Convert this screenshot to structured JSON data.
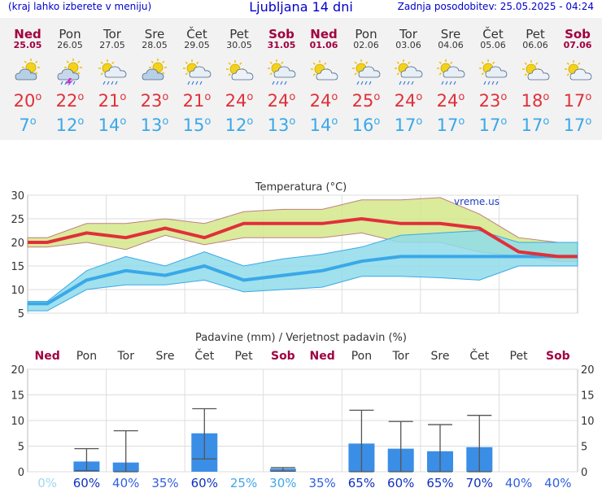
{
  "header": {
    "left_note": "(kraj lahko izberete v meniju)",
    "title": "Ljubljana 14 dni",
    "updated": "Zadnja posodobitev: 25.05.2025 - 04:24"
  },
  "days": [
    {
      "name": "Ned",
      "date": "25.05",
      "weekend": true,
      "icon": "partly-cloudy-icon",
      "max": "20",
      "min": "7"
    },
    {
      "name": "Pon",
      "date": "26.05",
      "weekend": false,
      "icon": "thunderstorm-icon",
      "max": "22",
      "min": "12"
    },
    {
      "name": "Tor",
      "date": "27.05",
      "weekend": false,
      "icon": "sun-cloud-rain-icon",
      "max": "21",
      "min": "14"
    },
    {
      "name": "Sre",
      "date": "28.05",
      "weekend": false,
      "icon": "partly-cloudy-icon",
      "max": "23",
      "min": "13"
    },
    {
      "name": "Čet",
      "date": "29.05",
      "weekend": false,
      "icon": "sun-cloud-rain-icon",
      "max": "21",
      "min": "15"
    },
    {
      "name": "Pet",
      "date": "30.05",
      "weekend": false,
      "icon": "sun-cloud-icon",
      "max": "24",
      "min": "12"
    },
    {
      "name": "Sob",
      "date": "31.05",
      "weekend": true,
      "icon": "sun-cloud-rain-icon",
      "max": "24",
      "min": "13"
    },
    {
      "name": "Ned",
      "date": "01.06",
      "weekend": true,
      "icon": "sun-cloud-icon",
      "max": "24",
      "min": "14"
    },
    {
      "name": "Pon",
      "date": "02.06",
      "weekend": false,
      "icon": "sun-cloud-rain-icon",
      "max": "25",
      "min": "16"
    },
    {
      "name": "Tor",
      "date": "03.06",
      "weekend": false,
      "icon": "sun-cloud-rain-icon",
      "max": "24",
      "min": "17"
    },
    {
      "name": "Sre",
      "date": "04.06",
      "weekend": false,
      "icon": "sun-cloud-rain-icon",
      "max": "24",
      "min": "17"
    },
    {
      "name": "Čet",
      "date": "05.06",
      "weekend": false,
      "icon": "sun-cloud-rain-icon",
      "max": "23",
      "min": "17"
    },
    {
      "name": "Pet",
      "date": "06.06",
      "weekend": false,
      "icon": "sun-cloud-icon",
      "max": "18",
      "min": "17"
    },
    {
      "name": "Sob",
      "date": "07.06",
      "weekend": true,
      "icon": "sun-cloud-icon",
      "max": "17",
      "min": "17"
    }
  ],
  "colors": {
    "weekend": "#a00040",
    "max_temp": "#e0303a",
    "min_temp": "#3aa8e8",
    "max_band": "#d4e88a",
    "min_band": "#8fdcea",
    "bar": "#3a8ee6"
  },
  "chart_data": [
    {
      "type": "line",
      "title": "Temperatura (°C)",
      "watermark": "vreme.us",
      "ylim": [
        5,
        30
      ],
      "yticks": [
        "5",
        "10",
        "15",
        "20",
        "25",
        "30"
      ],
      "grid": true,
      "series": [
        {
          "values": [
            20,
            22,
            21,
            23,
            21,
            24,
            24,
            24,
            25,
            24,
            24,
            23,
            18,
            17
          ]
        },
        {
          "values": [
            7,
            12,
            14,
            13,
            15,
            12,
            13,
            14,
            16,
            17,
            17,
            17,
            17,
            17
          ]
        }
      ],
      "max_band_low": [
        19,
        20,
        18.5,
        21.5,
        19.5,
        21,
        21,
        21,
        22,
        20,
        20,
        18,
        17,
        16
      ],
      "max_band_high": [
        21,
        24,
        24,
        25,
        24,
        26.5,
        27,
        27,
        29,
        29,
        29.5,
        26,
        21,
        20
      ],
      "min_band_low": [
        5.5,
        10,
        11,
        11,
        12,
        9.5,
        10,
        10.5,
        12.8,
        12.8,
        12.5,
        12,
        15,
        15
      ],
      "min_band_high": [
        7.5,
        14,
        17,
        15,
        18,
        15,
        16.5,
        17.5,
        19,
        21.5,
        22,
        22.5,
        20,
        20
      ]
    },
    {
      "type": "bar",
      "title": "Padavine (mm) / Verjetnost padavin (%)",
      "ylim": [
        0,
        20
      ],
      "yticks": [
        "0",
        "5",
        "10",
        "15",
        "20"
      ],
      "categories": [
        "Ned",
        "Pon",
        "Tor",
        "Sre",
        "Čet",
        "Pet",
        "Sob",
        "Ned",
        "Pon",
        "Tor",
        "Sre",
        "Čet",
        "Pet",
        "Sob"
      ],
      "values": [
        0,
        2,
        1.8,
        0,
        7.5,
        0,
        0.6,
        0,
        5.5,
        4.5,
        4,
        4.8,
        0,
        0
      ],
      "err_low": [
        0,
        0.2,
        0,
        0,
        2.5,
        0,
        0.1,
        0,
        0,
        0,
        0,
        0,
        0,
        0
      ],
      "err_high": [
        0,
        4.5,
        8,
        0,
        12.3,
        0,
        0.8,
        0,
        12,
        9.8,
        9.2,
        11,
        0,
        0
      ],
      "probability": [
        "0%",
        "60%",
        "40%",
        "35%",
        "60%",
        "25%",
        "30%",
        "35%",
        "65%",
        "60%",
        "65%",
        "70%",
        "40%",
        "40%"
      ]
    }
  ]
}
